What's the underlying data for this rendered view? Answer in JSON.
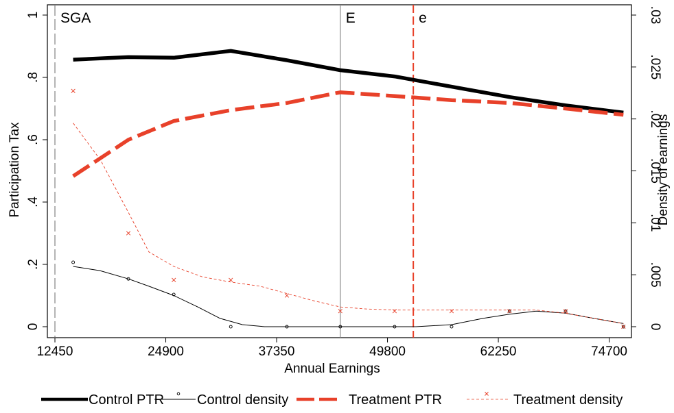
{
  "chart_data": {
    "type": "line",
    "xlabel": "Annual Earnings",
    "ylabel_left": "Participation Tax",
    "ylabel_right": "Density of earnings",
    "xlim": [
      11600,
      77200
    ],
    "ylim_left": [
      0,
      1
    ],
    "ylim_right": [
      0,
      0.03
    ],
    "x_ticks": [
      12450,
      24900,
      37350,
      49800,
      62250,
      74700
    ],
    "x_tick_labels": [
      "12450",
      "24900",
      "37350",
      "49800",
      "62250",
      "74700"
    ],
    "y_left_ticks": [
      0,
      0.2,
      0.4,
      0.6,
      0.8,
      1
    ],
    "y_left_tick_labels": [
      "0",
      ".2",
      ".4",
      ".6",
      ".8",
      "1"
    ],
    "y_right_ticks": [
      0,
      0.005,
      0.01,
      0.015,
      0.02,
      0.025,
      0.03
    ],
    "y_right_tick_labels": [
      "0",
      ".005",
      ".01",
      ".015",
      ".02",
      ".025",
      ".03"
    ],
    "grid": false,
    "legend_position": "bottom",
    "reference_lines": [
      {
        "label": "SGA",
        "x": 12450,
        "color": "#808080",
        "style": "dashed"
      },
      {
        "label": "E",
        "x": 44500,
        "color": "#8a8a8a",
        "style": "solid"
      },
      {
        "label": "e",
        "x": 52700,
        "color": "#e8412a",
        "style": "dashed"
      }
    ],
    "series": [
      {
        "name": "Control PTR",
        "axis": "left",
        "kind": "line",
        "color": "#000000",
        "style": "solid-thick",
        "x": [
          14500,
          20700,
          25800,
          32200,
          38500,
          44500,
          50600,
          57000,
          63500,
          69800,
          76300
        ],
        "y": [
          0.857,
          0.865,
          0.863,
          0.885,
          0.855,
          0.823,
          0.803,
          0.77,
          0.737,
          0.71,
          0.687
        ]
      },
      {
        "name": "Control density",
        "axis": "right",
        "kind": "line",
        "color": "#000000",
        "style": "solid-thin",
        "x": [
          14500,
          20700,
          25800,
          32200,
          38500,
          44500,
          50600,
          57000,
          63500,
          69800,
          76300
        ],
        "y": [
          0.0058,
          0.0046,
          0.003,
          0.0004,
          0.0,
          0.0,
          0.0,
          0.0001,
          0.0011,
          0.0015,
          0.0003
        ],
        "curve": [
          [
            14500,
            0.0058
          ],
          [
            17500,
            0.0054
          ],
          [
            20700,
            0.0046
          ],
          [
            23000,
            0.0039
          ],
          [
            25800,
            0.003
          ],
          [
            28500,
            0.0019
          ],
          [
            31000,
            0.0008
          ],
          [
            33500,
            0.0002
          ],
          [
            36000,
            0.0
          ],
          [
            44500,
            0.0
          ],
          [
            53000,
            0.0
          ],
          [
            57000,
            0.0002
          ],
          [
            60500,
            0.0008
          ],
          [
            63500,
            0.0012
          ],
          [
            66500,
            0.0015
          ],
          [
            69800,
            0.0013
          ],
          [
            73000,
            0.0008
          ],
          [
            76300,
            0.0003
          ]
        ]
      },
      {
        "name": "Control density",
        "axis": "right",
        "kind": "marker",
        "marker": "circle",
        "color": "#000000",
        "x": [
          14500,
          20700,
          25800,
          32200,
          38500,
          44500,
          50600,
          57000,
          63500,
          69800,
          76300
        ],
        "y": [
          0.0062,
          0.0046,
          0.0031,
          0.0,
          0.0,
          0.0,
          0.0,
          0.0,
          0.0015,
          0.0015,
          0.0
        ]
      },
      {
        "name": "Treatment PTR",
        "axis": "left",
        "kind": "line",
        "color": "#e8412a",
        "style": "dashed-thick",
        "x": [
          14500,
          20700,
          25800,
          32200,
          38500,
          44500,
          50600,
          57000,
          63500,
          69800,
          76300
        ],
        "y": [
          0.483,
          0.6,
          0.66,
          0.695,
          0.718,
          0.752,
          0.74,
          0.727,
          0.718,
          0.7,
          0.68
        ]
      },
      {
        "name": "Treatment density",
        "axis": "right",
        "kind": "line",
        "color": "#e8412a",
        "style": "dashed-thin",
        "x": [
          14500,
          20700,
          25800,
          32200,
          38500,
          44500,
          50600,
          57000,
          63500,
          69800,
          76300
        ],
        "y": [
          0.0196,
          0.0108,
          0.0058,
          0.0043,
          0.0032,
          0.0019,
          0.0016,
          0.0016,
          0.0016,
          0.0015,
          0.0003
        ],
        "curve": [
          [
            14500,
            0.0196
          ],
          [
            17600,
            0.016
          ],
          [
            20700,
            0.011
          ],
          [
            23000,
            0.0072
          ],
          [
            25800,
            0.0058
          ],
          [
            29000,
            0.0048
          ],
          [
            32200,
            0.0043
          ],
          [
            35500,
            0.0039
          ],
          [
            38500,
            0.0032
          ],
          [
            41500,
            0.0025
          ],
          [
            44500,
            0.0019
          ],
          [
            47500,
            0.0017
          ],
          [
            50600,
            0.0016
          ],
          [
            57000,
            0.0016
          ],
          [
            63500,
            0.0016
          ],
          [
            66500,
            0.0016
          ],
          [
            69800,
            0.0013
          ],
          [
            73000,
            0.0008
          ],
          [
            76300,
            0.0003
          ]
        ]
      },
      {
        "name": "Treatment density",
        "axis": "right",
        "kind": "marker",
        "marker": "x",
        "color": "#e8412a",
        "x": [
          14500,
          20700,
          25800,
          32200,
          38500,
          44500,
          50600,
          57000,
          63500,
          69800,
          76300
        ],
        "y": [
          0.0227,
          0.009,
          0.0045,
          0.0045,
          0.003,
          0.0015,
          0.0015,
          0.0015,
          0.0015,
          0.0015,
          0.0
        ]
      }
    ],
    "legend": [
      {
        "label": "Control PTR",
        "color": "#000000",
        "style": "solid-thick"
      },
      {
        "label": "Control density",
        "color": "#000000",
        "style": "solid-thin",
        "marker": "circle"
      },
      {
        "label": "Treatment PTR",
        "color": "#e8412a",
        "style": "dashed-thick"
      },
      {
        "label": "Treatment density",
        "color": "#e8412a",
        "style": "dashed-thin",
        "marker": "x"
      }
    ]
  }
}
